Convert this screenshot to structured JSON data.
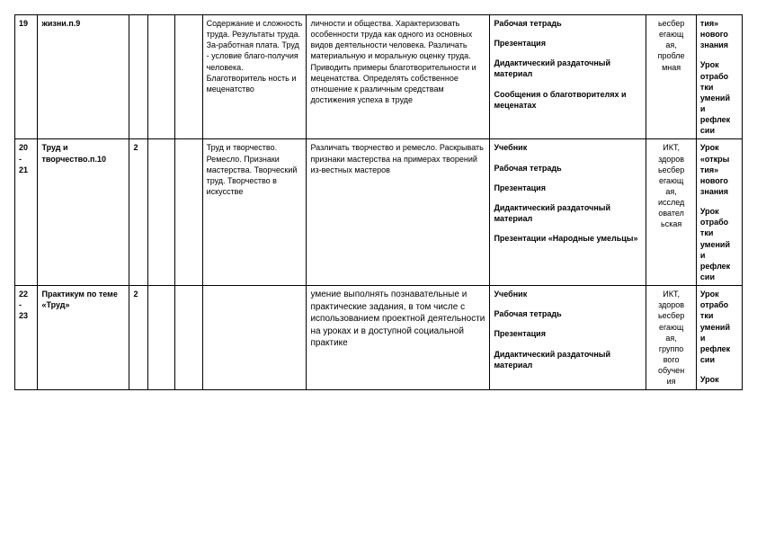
{
  "rows": [
    {
      "num": "19",
      "topic": "жизни.п.9",
      "hours": "",
      "col4": "",
      "col5": "",
      "content": "Содержание и сложность труда. Результаты труда. За-работная плата. Труд - условие благо-получия человека. Благотворитель ность и меценатство",
      "activity": "личности и общества. Характеризовать особенности труда как одного из основных видов деятельности человека. Различать материальную и моральную оценку труда. Приводить примеры благотворительности и меценатства. Определять собственное отношение к различным средствам достижения успеха в труде",
      "resources": "Рабочая тетрадь\n\nПрезентация\n\nДидактический раздаточный материал\n\nСообщения о благотворителях и меценатах",
      "tech": "ьесбер\nегающ\nая,\nпробле\nмная",
      "type": "тия»\nнового\nзнания\n\nУрок\nотрабо\nтки\nумений\nи\nрефлек\nсии"
    },
    {
      "num": "20\n-\n21",
      "topic": "Труд и творчество.п.10",
      "hours": "2",
      "col4": "",
      "col5": "",
      "content": "Труд и творчество. Ремесло. Признаки мастерства. Творческий труд. Творчество в искусстве",
      "activity": "Различать творчество и ремесло. Раскрывать признаки мастерства на примерах творений из-вестных мастеров",
      "resources": "Учебник\n\nРабочая тетрадь\n\nПрезентация\n\nДидактический раздаточный материал\n\nПрезентации «Народные умельцы»",
      "tech": "ИКТ,\nздоров\nьесбер\nегающ\nая,\nисслед\nовател\nьская",
      "type": "Урок\n«откры\nтия»\nнового\nзнания\n\nУрок\nотрабо\nтки\nумений\nи\nрефлек\nсии"
    },
    {
      "num": "22\n-\n23",
      "topic": "Практикум по теме «Труд»",
      "hours": "2",
      "col4": "",
      "col5": "",
      "content": "",
      "activity": "умение выполнять познавательные и практические задания, в том числе с использованием проектной деятельности на уроках и в доступной социальной практике",
      "resources": "Учебник\n\nРабочая тетрадь\n\nПрезентация\n\nДидактический раздаточный материал",
      "tech": "ИКТ,\nздоров\nьесбер\nегающ\nая,\nгруппо\nвого\nобучен\nия",
      "type": "Урок\nотрабо\nтки\nумений\nи\nрефлек\nсии\n\nУрок"
    }
  ]
}
